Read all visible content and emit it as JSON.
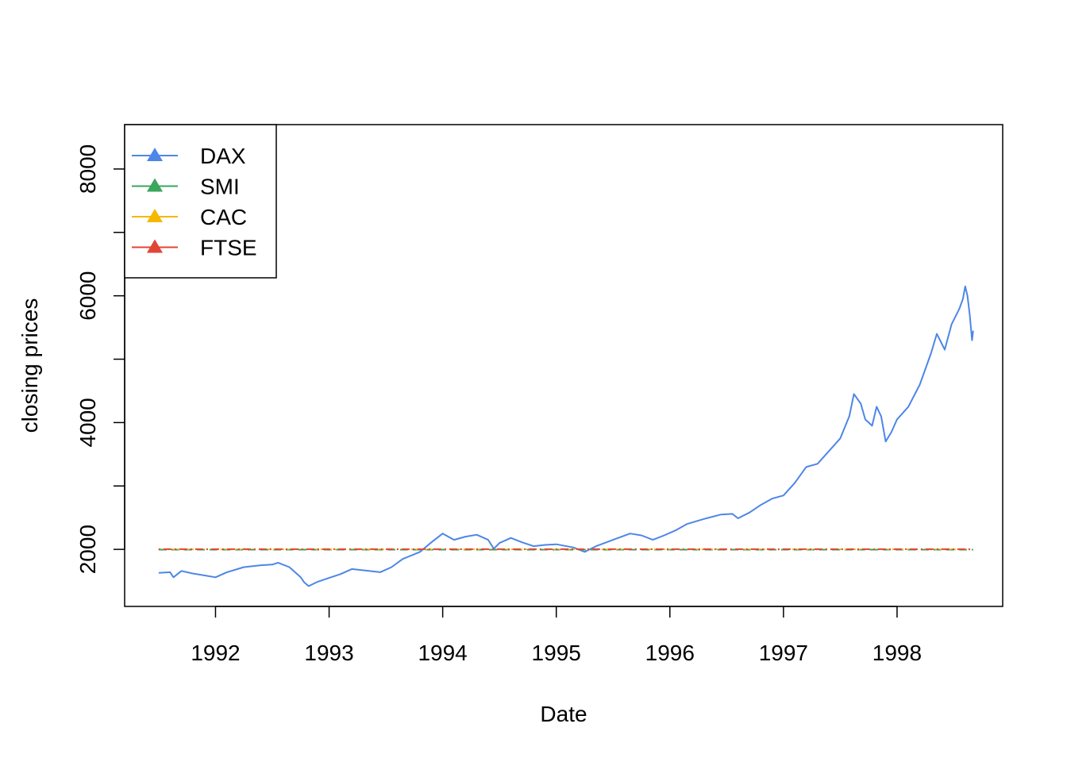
{
  "chart_data": {
    "type": "line",
    "title": "",
    "xlabel": "Date",
    "ylabel": "closing prices",
    "xlim": [
      1991.2,
      1998.93
    ],
    "ylim": [
      1100,
      8700
    ],
    "x_ticks": [
      1992,
      1993,
      1994,
      1995,
      1996,
      1997,
      1998
    ],
    "x_tick_labels": [
      "1992",
      "1993",
      "1994",
      "1995",
      "1996",
      "1997",
      "1998"
    ],
    "y_ticks": [
      2000,
      3000,
      4000,
      5000,
      6000,
      7000,
      8000
    ],
    "y_tick_labels": [
      "2000",
      "",
      "4000",
      "",
      "6000",
      "",
      "8000"
    ],
    "grid": false,
    "legend_position": "top-left",
    "series": [
      {
        "name": "DAX",
        "color": "#4d86e8",
        "line_style": "solid",
        "points": [
          [
            1991.5,
            1630
          ],
          [
            1991.6,
            1640
          ],
          [
            1991.63,
            1560
          ],
          [
            1991.7,
            1660
          ],
          [
            1991.8,
            1620
          ],
          [
            1991.9,
            1590
          ],
          [
            1992.0,
            1560
          ],
          [
            1992.1,
            1640
          ],
          [
            1992.25,
            1720
          ],
          [
            1992.4,
            1750
          ],
          [
            1992.5,
            1760
          ],
          [
            1992.55,
            1790
          ],
          [
            1992.65,
            1720
          ],
          [
            1992.75,
            1560
          ],
          [
            1992.78,
            1480
          ],
          [
            1992.82,
            1420
          ],
          [
            1992.9,
            1490
          ],
          [
            1993.0,
            1550
          ],
          [
            1993.1,
            1610
          ],
          [
            1993.2,
            1690
          ],
          [
            1993.35,
            1660
          ],
          [
            1993.45,
            1640
          ],
          [
            1993.55,
            1720
          ],
          [
            1993.65,
            1850
          ],
          [
            1993.8,
            1960
          ],
          [
            1993.9,
            2110
          ],
          [
            1994.0,
            2250
          ],
          [
            1994.1,
            2150
          ],
          [
            1994.2,
            2200
          ],
          [
            1994.3,
            2230
          ],
          [
            1994.4,
            2150
          ],
          [
            1994.45,
            2010
          ],
          [
            1994.5,
            2100
          ],
          [
            1994.6,
            2180
          ],
          [
            1994.7,
            2110
          ],
          [
            1994.8,
            2050
          ],
          [
            1994.9,
            2070
          ],
          [
            1995.0,
            2080
          ],
          [
            1995.15,
            2030
          ],
          [
            1995.25,
            1960
          ],
          [
            1995.35,
            2050
          ],
          [
            1995.5,
            2150
          ],
          [
            1995.65,
            2250
          ],
          [
            1995.75,
            2220
          ],
          [
            1995.85,
            2150
          ],
          [
            1995.95,
            2220
          ],
          [
            1996.05,
            2300
          ],
          [
            1996.15,
            2400
          ],
          [
            1996.3,
            2480
          ],
          [
            1996.45,
            2550
          ],
          [
            1996.55,
            2560
          ],
          [
            1996.6,
            2490
          ],
          [
            1996.7,
            2580
          ],
          [
            1996.8,
            2700
          ],
          [
            1996.9,
            2800
          ],
          [
            1997.0,
            2850
          ],
          [
            1997.1,
            3050
          ],
          [
            1997.2,
            3300
          ],
          [
            1997.3,
            3350
          ],
          [
            1997.4,
            3550
          ],
          [
            1997.5,
            3750
          ],
          [
            1997.58,
            4100
          ],
          [
            1997.62,
            4450
          ],
          [
            1997.68,
            4300
          ],
          [
            1997.72,
            4050
          ],
          [
            1997.78,
            3950
          ],
          [
            1997.82,
            4250
          ],
          [
            1997.86,
            4100
          ],
          [
            1997.9,
            3700
          ],
          [
            1997.95,
            3850
          ],
          [
            1998.0,
            4050
          ],
          [
            1998.1,
            4250
          ],
          [
            1998.2,
            4600
          ],
          [
            1998.3,
            5100
          ],
          [
            1998.35,
            5400
          ],
          [
            1998.42,
            5150
          ],
          [
            1998.48,
            5550
          ],
          [
            1998.55,
            5800
          ],
          [
            1998.58,
            5950
          ],
          [
            1998.6,
            6150
          ],
          [
            1998.62,
            6000
          ],
          [
            1998.64,
            5700
          ],
          [
            1998.66,
            5300
          ],
          [
            1998.67,
            5450
          ]
        ]
      },
      {
        "name": "SMI",
        "color": "#3aa55c",
        "line_style": "dashed",
        "points": [
          [
            1991.5,
            1995
          ],
          [
            1998.67,
            1995
          ]
        ]
      },
      {
        "name": "CAC",
        "color": "#f5b800",
        "line_style": "dotted",
        "points": [
          [
            1991.5,
            2000
          ],
          [
            1998.67,
            2000
          ]
        ]
      },
      {
        "name": "FTSE",
        "color": "#e04535",
        "line_style": "dotdash",
        "points": [
          [
            1991.5,
            2003
          ],
          [
            1998.67,
            2003
          ]
        ]
      }
    ]
  }
}
